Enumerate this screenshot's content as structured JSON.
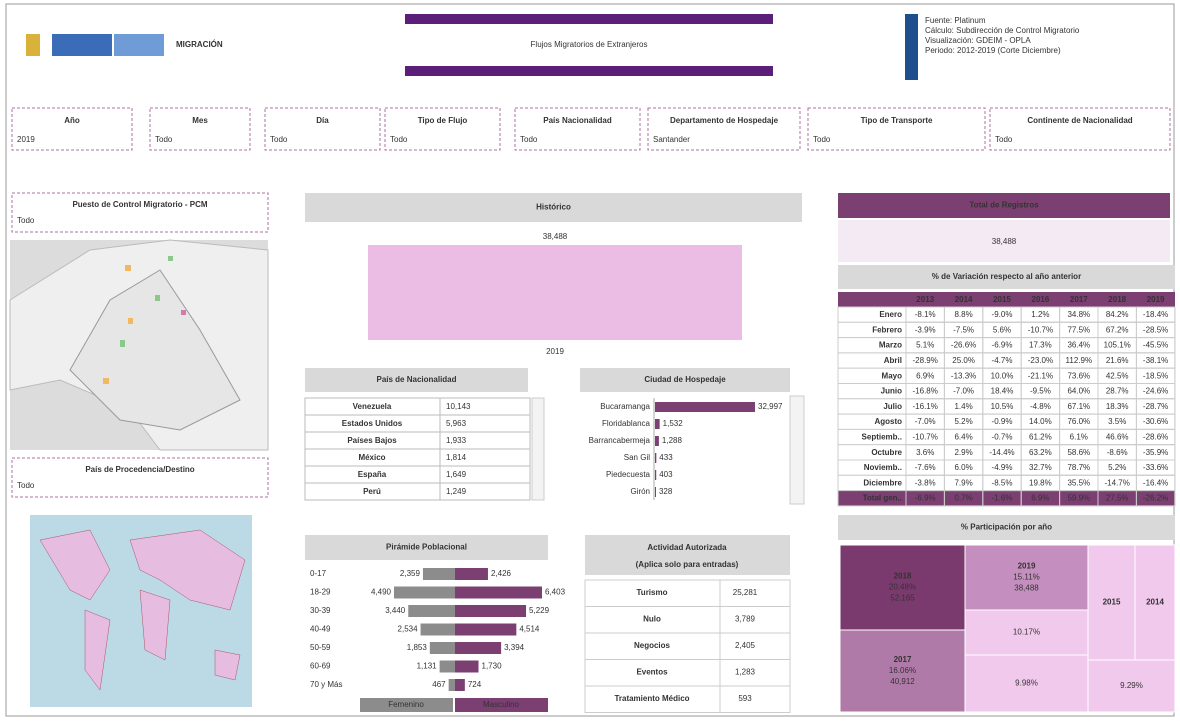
{
  "header": {
    "brand": "MIGRACIÓN",
    "title": "Flujos Migratorios de Extranjeros",
    "info": [
      "Fuente: Platinum",
      "Cálculo: Subdirección de Control Migratorio",
      "Visualización: GDEIM - OPLA",
      "Periodo: 2012-2019 (Corte Diciembre)"
    ]
  },
  "filters": [
    {
      "label": "Año",
      "value": "2019"
    },
    {
      "label": "Mes",
      "value": "Todo"
    },
    {
      "label": "Día",
      "value": "Todo"
    },
    {
      "label": "Tipo de Flujo",
      "value": "Todo"
    },
    {
      "label": "País Nacionalidad",
      "value": "Todo"
    },
    {
      "label": "Departamento de Hospedaje",
      "value": "Santander"
    },
    {
      "label": "Tipo de Transporte",
      "value": "Todo"
    },
    {
      "label": "Continente de Nacionalidad",
      "value": "Todo"
    }
  ],
  "side_filters": [
    {
      "label": "Puesto de Control Migratorio - PCM",
      "value": "Todo"
    },
    {
      "label": "País de Procedencia/Destino",
      "value": "Todo"
    }
  ],
  "historico": {
    "title": "Histórico",
    "categories": [
      "2019"
    ],
    "values": [
      38488
    ],
    "value_labels": [
      "38,488"
    ],
    "color": "#ebbde5"
  },
  "nacionalidad": {
    "title": "País de Nacionalidad",
    "rows": [
      [
        "Venezuela",
        "10,143"
      ],
      [
        "Estados Unidos",
        "5,963"
      ],
      [
        "Países Bajos",
        "1,933"
      ],
      [
        "México",
        "1,814"
      ],
      [
        "España",
        "1,649"
      ],
      [
        "Perú",
        "1,249"
      ]
    ]
  },
  "ciudad": {
    "title": "Ciudad de Hospedaje",
    "categories": [
      "Bucaramanga",
      "Floridablanca",
      "Barrancabermeja",
      "San Gil",
      "Piedecuesta",
      "Girón"
    ],
    "values": [
      32997,
      1532,
      1288,
      433,
      403,
      328
    ],
    "value_labels": [
      "32,997",
      "1,532",
      "1,288",
      "433",
      "403",
      "328"
    ],
    "color": "#7b3f72"
  },
  "piramide": {
    "title": "Pirámide Poblacional",
    "categories": [
      "0-17",
      "18-29",
      "30-39",
      "40-49",
      "50-59",
      "60-69",
      "70 y Más"
    ],
    "series": [
      {
        "name": "Femenino",
        "color": "#8c8c8c",
        "values": [
          2359,
          4490,
          3440,
          2534,
          1853,
          1131,
          467
        ],
        "value_labels": [
          "2,359",
          "4,490",
          "3,440",
          "2,534",
          "1,853",
          "1,131",
          "467"
        ]
      },
      {
        "name": "Masculino",
        "color": "#7b3f72",
        "values": [
          2426,
          6403,
          5229,
          4514,
          3394,
          1730,
          724
        ],
        "value_labels": [
          "2,426",
          "6,403",
          "5,229",
          "4,514",
          "3,394",
          "1,730",
          "724"
        ]
      }
    ]
  },
  "actividad": {
    "title": "Actividad Autorizada",
    "subtitle": "(Aplica solo para entradas)",
    "rows": [
      [
        "Turismo",
        "25,281"
      ],
      [
        "Nulo",
        "3,789"
      ],
      [
        "Negocios",
        "2,405"
      ],
      [
        "Eventos",
        "1,283"
      ],
      [
        "Tratamiento Médico",
        "593"
      ]
    ]
  },
  "total": {
    "title": "Total de Registros",
    "value": "38,488"
  },
  "variacion": {
    "title": "% de Variación respecto al año anterior",
    "columns": [
      "2013",
      "2014",
      "2015",
      "2016",
      "2017",
      "2018",
      "2019"
    ],
    "rows": [
      {
        "label": "Enero",
        "values": [
          "-8.1%",
          "8.8%",
          "-9.0%",
          "1.2%",
          "34.8%",
          "84.2%",
          "-18.4%"
        ]
      },
      {
        "label": "Febrero",
        "values": [
          "-3.9%",
          "-7.5%",
          "5.6%",
          "-10.7%",
          "77.5%",
          "67.2%",
          "-28.5%"
        ]
      },
      {
        "label": "Marzo",
        "values": [
          "5.1%",
          "-26.6%",
          "-6.9%",
          "17.3%",
          "36.4%",
          "105.1%",
          "-45.5%"
        ]
      },
      {
        "label": "Abril",
        "values": [
          "-28.9%",
          "25.0%",
          "-4.7%",
          "-23.0%",
          "112.9%",
          "21.6%",
          "-38.1%"
        ]
      },
      {
        "label": "Mayo",
        "values": [
          "6.9%",
          "-13.3%",
          "10.0%",
          "-21.1%",
          "73.6%",
          "42.5%",
          "-18.5%"
        ]
      },
      {
        "label": "Junio",
        "values": [
          "-16.8%",
          "-7.0%",
          "18.4%",
          "-9.5%",
          "64.0%",
          "28.7%",
          "-24.6%"
        ]
      },
      {
        "label": "Julio",
        "values": [
          "-16.1%",
          "1.4%",
          "10.5%",
          "-4.8%",
          "67.1%",
          "18.3%",
          "-28.7%"
        ]
      },
      {
        "label": "Agosto",
        "values": [
          "-7.0%",
          "5.2%",
          "-0.9%",
          "14.0%",
          "76.0%",
          "3.5%",
          "-30.6%"
        ]
      },
      {
        "label": "Septiemb..",
        "values": [
          "-10.7%",
          "6.4%",
          "-0.7%",
          "61.2%",
          "6.1%",
          "46.6%",
          "-28.6%"
        ]
      },
      {
        "label": "Octubre",
        "values": [
          "3.6%",
          "2.9%",
          "-14.4%",
          "63.2%",
          "58.6%",
          "-8.6%",
          "-35.9%"
        ]
      },
      {
        "label": "Noviemb..",
        "values": [
          "-7.6%",
          "6.0%",
          "-4.9%",
          "32.7%",
          "78.7%",
          "5.2%",
          "-33.6%"
        ]
      },
      {
        "label": "Diciembre",
        "values": [
          "-3.8%",
          "7.9%",
          "-8.5%",
          "19.8%",
          "35.5%",
          "-14.7%",
          "-16.4%"
        ]
      },
      {
        "label": "Total gen..",
        "values": [
          "-6.9%",
          "0.7%",
          "-1.6%",
          "6.9%",
          "59.9%",
          "27.5%",
          "-26.2%"
        ]
      }
    ]
  },
  "participacion": {
    "title": "% Participación por año",
    "cells": [
      {
        "label": "2018",
        "pct": "20.48%",
        "value": "52,165"
      },
      {
        "label": "2019",
        "pct": "15.11%",
        "value": "38,488"
      },
      {
        "label": "2017",
        "pct": "16.06%",
        "value": "40,912"
      },
      {
        "pct": "10.17%"
      },
      {
        "pct": "9.98%"
      },
      {
        "label": "2015"
      },
      {
        "label": "2014"
      },
      {
        "pct": "9.29%"
      }
    ]
  }
}
